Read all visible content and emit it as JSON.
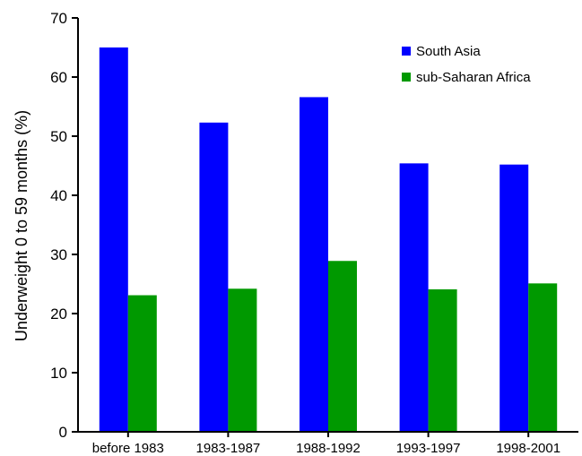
{
  "chart_data": {
    "type": "bar",
    "title": "",
    "xlabel": "",
    "ylabel": "Underweight 0 to 59 months (%)",
    "ylim": [
      0,
      70
    ],
    "yticks": [
      0,
      10,
      20,
      30,
      40,
      50,
      60,
      70
    ],
    "grid": false,
    "legend_position": "top-right",
    "categories": [
      "before 1983",
      "1983-1987",
      "1988-1992",
      "1993-1997",
      "1998-2001"
    ],
    "series": [
      {
        "name": "South Asia",
        "color": "#0000ff",
        "values": [
          65,
          52.3,
          56.6,
          45.4,
          45.2
        ]
      },
      {
        "name": "sub-Saharan Africa",
        "color": "#009900",
        "values": [
          23.1,
          24.2,
          28.9,
          24.1,
          25.1
        ]
      }
    ]
  }
}
